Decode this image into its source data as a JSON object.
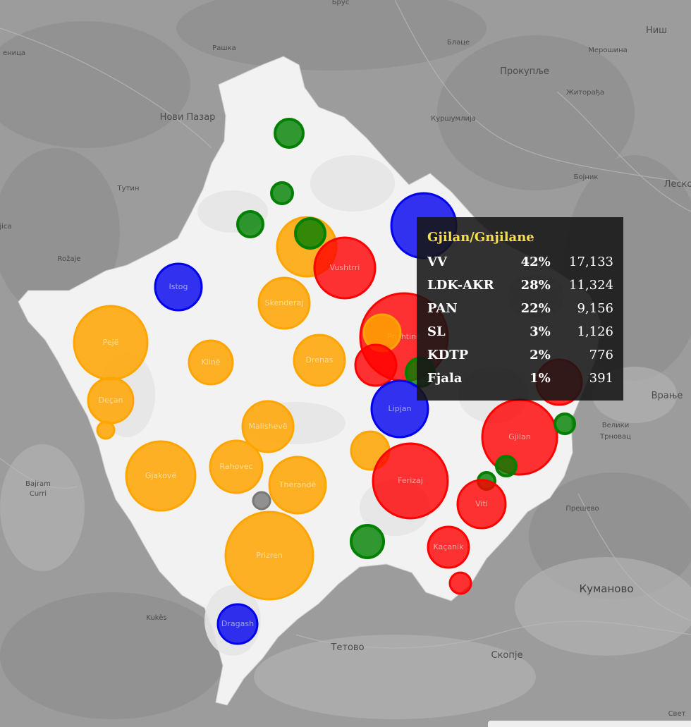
{
  "base_map": {
    "places": [
      {
        "name": "Брус",
        "size": "small"
      },
      {
        "name": "Ниш",
        "size": "normal"
      },
      {
        "name": "Рашка",
        "size": "small"
      },
      {
        "name": "Блаце",
        "size": "small"
      },
      {
        "name": "Мерошина",
        "size": "small"
      },
      {
        "name": "Прокупље",
        "size": "normal"
      },
      {
        "name": "Житорађа",
        "size": "small"
      },
      {
        "name": "Куршумлија",
        "size": "small"
      },
      {
        "name": "Нови Пазар",
        "size": "normal"
      },
      {
        "name": "Тутин",
        "size": "small"
      },
      {
        "name": "Бојник",
        "size": "small"
      },
      {
        "name": "Леско",
        "size": "normal"
      },
      {
        "name": "Rožaje",
        "size": "small"
      },
      {
        "name": "Врање",
        "size": "normal"
      },
      {
        "name": "Велики",
        "size": "small"
      },
      {
        "name": "Трновац",
        "size": "small"
      },
      {
        "name": "Прешево",
        "size": "small"
      },
      {
        "name": "Bajram",
        "size": "small"
      },
      {
        "name": "Curri",
        "size": "small"
      },
      {
        "name": "Kukës",
        "size": "small"
      },
      {
        "name": "Куманово",
        "size": "big"
      },
      {
        "name": "Тетово",
        "size": "normal"
      },
      {
        "name": "Скопје",
        "size": "normal"
      },
      {
        "name": "еница",
        "size": "small"
      },
      {
        "name": "jica",
        "size": "small"
      },
      {
        "name": "Свет",
        "size": "small"
      }
    ]
  },
  "legend_colors": {
    "LDK": "#0000ee",
    "VV": "#ff0000",
    "PDK": "#ffa500",
    "SL": "#008000",
    "other": "#777777"
  },
  "municipalities": [
    {
      "label": "",
      "party_color": "#008000"
    },
    {
      "label": "",
      "party_color": "#008000"
    },
    {
      "label": "",
      "party_color": "#008000"
    },
    {
      "label": "",
      "party_color": "#ffa500"
    },
    {
      "label": "",
      "party_color": "#008000"
    },
    {
      "label": "",
      "party_color": "#0000ee"
    },
    {
      "label": "Istog",
      "party_color": "#0000ee"
    },
    {
      "label": "Vushtrri",
      "party_color": "#ff0000"
    },
    {
      "label": "Skenderaj",
      "party_color": "#ffa500"
    },
    {
      "label": "Pejë",
      "party_color": "#ffa500"
    },
    {
      "label": "Prishtinë",
      "party_color": "#ff0000"
    },
    {
      "label": "",
      "party_color": "#ffa500"
    },
    {
      "label": "Klinë",
      "party_color": "#ffa500"
    },
    {
      "label": "Drenas",
      "party_color": "#ffa500"
    },
    {
      "label": "",
      "party_color": "#ff0000"
    },
    {
      "label": "",
      "party_color": "#008000"
    },
    {
      "label": "",
      "party_color": "#ff0000"
    },
    {
      "label": "Deçan",
      "party_color": "#ffa500"
    },
    {
      "label": "Lipjan",
      "party_color": "#0000ee"
    },
    {
      "label": "",
      "party_color": "#ffa500"
    },
    {
      "label": "Malishevë",
      "party_color": "#ffa500"
    },
    {
      "label": "Gjilan",
      "party_color": "#ff0000"
    },
    {
      "label": "",
      "party_color": "#008000"
    },
    {
      "label": "",
      "party_color": "#ffa500"
    },
    {
      "label": "Gjakovë",
      "party_color": "#ffa500"
    },
    {
      "label": "Rahovec",
      "party_color": "#ffa500"
    },
    {
      "label": "Ferizaj",
      "party_color": "#ff0000"
    },
    {
      "label": "",
      "party_color": "#008000"
    },
    {
      "label": "Therandë",
      "party_color": "#ffa500"
    },
    {
      "label": "",
      "party_color": "#008000"
    },
    {
      "label": "",
      "party_color": "#777777"
    },
    {
      "label": "Viti",
      "party_color": "#ff0000"
    },
    {
      "label": "Kaçanik",
      "party_color": "#ff0000"
    },
    {
      "label": "",
      "party_color": "#008000"
    },
    {
      "label": "Prizren",
      "party_color": "#ffa500"
    },
    {
      "label": "",
      "party_color": "#ff0000"
    },
    {
      "label": "Dragash",
      "party_color": "#0000ee"
    }
  ],
  "tooltip": {
    "title": "Gjilan/Gnjilane",
    "rows": [
      {
        "party": "VV",
        "percent": "42%",
        "votes": "17,133"
      },
      {
        "party": "LDK-AKR",
        "percent": "28%",
        "votes": "11,324"
      },
      {
        "party": "PAN",
        "percent": "22%",
        "votes": "9,156"
      },
      {
        "party": "SL",
        "percent": "3%",
        "votes": "1,126"
      },
      {
        "party": "KDTP",
        "percent": "2%",
        "votes": "776"
      },
      {
        "party": "Fjala",
        "percent": "1%",
        "votes": "391"
      }
    ]
  }
}
